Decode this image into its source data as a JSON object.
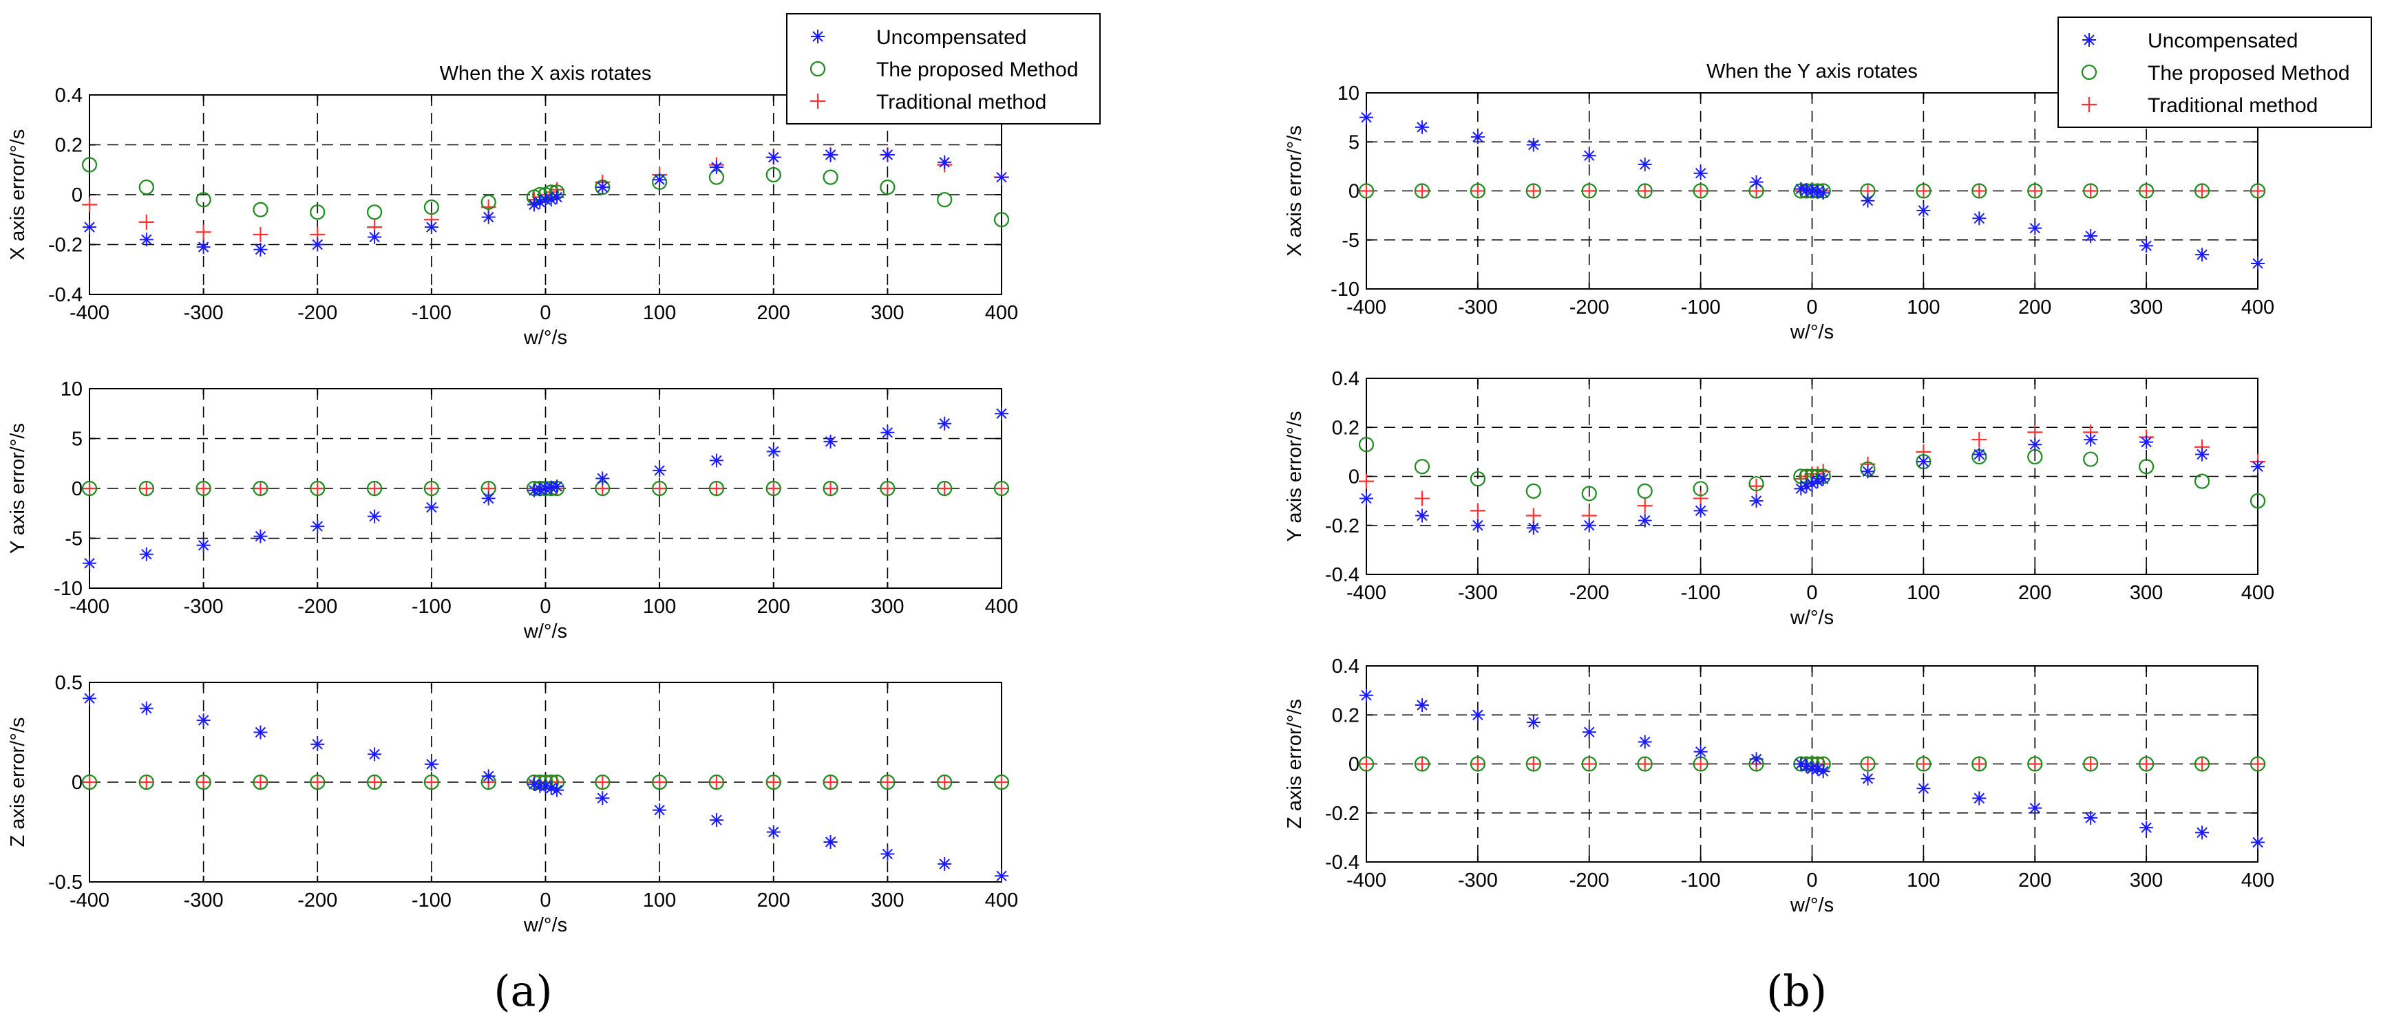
{
  "colors": {
    "uncompensated": "#1a1aff",
    "proposed": "#1a8c1a",
    "traditional": "#ff3030",
    "axis": "#000000",
    "grid": "#000000"
  },
  "legend_labels": [
    "Uncompensated",
    "The proposed Method",
    "Traditional method"
  ],
  "captions": {
    "left": "(a)",
    "right": "(b)"
  },
  "chart_data": [
    {
      "id": "a1",
      "type": "scatter",
      "title": "When the X axis rotates",
      "xlabel": "w/°/s",
      "ylabel": "X axis error/°/s",
      "xlim": [
        -400,
        400
      ],
      "ylim": [
        -0.4,
        0.4
      ],
      "xticks": [
        -400,
        -300,
        -200,
        -100,
        0,
        100,
        200,
        300,
        400
      ],
      "yticks": [
        -0.4,
        -0.2,
        0,
        0.2,
        0.4
      ],
      "ytick_labels": [
        "-0.4",
        "-0.2",
        "0",
        "0.2",
        "0.4"
      ],
      "grid": true,
      "legend": "top-right",
      "x": [
        -400,
        -350,
        -300,
        -250,
        -200,
        -150,
        -100,
        -50,
        -10,
        -5,
        0,
        5,
        10,
        50,
        100,
        150,
        200,
        250,
        300,
        350,
        400
      ],
      "series": [
        {
          "name": "Uncompensated",
          "marker": "star",
          "values": [
            -0.13,
            -0.18,
            -0.21,
            -0.22,
            -0.2,
            -0.17,
            -0.13,
            -0.09,
            -0.04,
            -0.03,
            -0.02,
            -0.02,
            -0.01,
            0.03,
            0.06,
            0.11,
            0.15,
            0.16,
            0.16,
            0.13,
            0.07
          ]
        },
        {
          "name": "The proposed Method",
          "marker": "circle",
          "values": [
            0.12,
            0.03,
            -0.02,
            -0.06,
            -0.07,
            -0.07,
            -0.05,
            -0.03,
            -0.01,
            0.0,
            0.0,
            0.01,
            0.01,
            0.03,
            0.05,
            0.07,
            0.08,
            0.07,
            0.03,
            -0.02,
            -0.1
          ]
        },
        {
          "name": "Traditional method",
          "marker": "plus",
          "values": [
            -0.04,
            -0.11,
            -0.15,
            -0.16,
            -0.16,
            -0.13,
            -0.1,
            -0.05,
            -0.02,
            -0.01,
            0.0,
            0.01,
            0.02,
            0.05,
            0.08,
            0.12,
            0.15,
            0.16,
            0.16,
            0.12,
            0.07
          ]
        }
      ]
    },
    {
      "id": "a2",
      "type": "scatter",
      "title": "",
      "xlabel": "w/°/s",
      "ylabel": "Y axis error/°/s",
      "xlim": [
        -400,
        400
      ],
      "ylim": [
        -10,
        10
      ],
      "xticks": [
        -400,
        -300,
        -200,
        -100,
        0,
        100,
        200,
        300,
        400
      ],
      "yticks": [
        -10,
        -5,
        0,
        5,
        10
      ],
      "ytick_labels": [
        "-10",
        "-5",
        "0",
        "5",
        "10"
      ],
      "grid": true,
      "legend": "",
      "x": [
        -400,
        -350,
        -300,
        -250,
        -200,
        -150,
        -100,
        -50,
        -10,
        -5,
        0,
        5,
        10,
        50,
        100,
        150,
        200,
        250,
        300,
        350,
        400
      ],
      "series": [
        {
          "name": "Uncompensated",
          "marker": "star",
          "values": [
            -7.5,
            -6.6,
            -5.7,
            -4.8,
            -3.8,
            -2.8,
            -1.9,
            -1.0,
            -0.2,
            -0.1,
            0.0,
            0.1,
            0.2,
            1.0,
            1.8,
            2.8,
            3.7,
            4.7,
            5.6,
            6.5,
            7.5
          ]
        },
        {
          "name": "The proposed Method",
          "marker": "circle",
          "values": [
            0,
            0,
            0,
            0,
            0,
            0,
            0,
            0,
            0,
            0,
            0,
            0,
            0,
            0,
            0,
            0,
            0,
            0,
            0,
            0,
            0
          ]
        },
        {
          "name": "Traditional method",
          "marker": "plus",
          "values": [
            0,
            0,
            0,
            0,
            0,
            0,
            0,
            0,
            0,
            0,
            0,
            0,
            0,
            0,
            0,
            0,
            0,
            0,
            0,
            0,
            0
          ]
        }
      ]
    },
    {
      "id": "a3",
      "type": "scatter",
      "title": "",
      "xlabel": "w/°/s",
      "ylabel": "Z axis error/°/s",
      "xlim": [
        -400,
        400
      ],
      "ylim": [
        -0.5,
        0.5
      ],
      "xticks": [
        -400,
        -300,
        -200,
        -100,
        0,
        100,
        200,
        300,
        400
      ],
      "yticks": [
        -0.5,
        0,
        0.5
      ],
      "ytick_labels": [
        "-0.5",
        "0",
        "0.5"
      ],
      "grid": true,
      "legend": "",
      "x": [
        -400,
        -350,
        -300,
        -250,
        -200,
        -150,
        -100,
        -50,
        -10,
        -5,
        0,
        5,
        10,
        50,
        100,
        150,
        200,
        250,
        300,
        350,
        400
      ],
      "series": [
        {
          "name": "Uncompensated",
          "marker": "star",
          "values": [
            0.42,
            0.37,
            0.31,
            0.25,
            0.19,
            0.14,
            0.09,
            0.03,
            -0.01,
            -0.02,
            -0.02,
            -0.03,
            -0.04,
            -0.08,
            -0.14,
            -0.19,
            -0.25,
            -0.3,
            -0.36,
            -0.41,
            -0.47
          ]
        },
        {
          "name": "The proposed Method",
          "marker": "circle",
          "values": [
            0,
            0,
            0,
            0,
            0,
            0,
            0,
            0,
            0,
            0,
            0,
            0,
            0,
            0,
            0,
            0,
            0,
            0,
            0,
            0,
            0
          ]
        },
        {
          "name": "Traditional method",
          "marker": "plus",
          "values": [
            0,
            0,
            0,
            0,
            0,
            0,
            0,
            0,
            0,
            0,
            0,
            0,
            0,
            0,
            0,
            0,
            0,
            0,
            0,
            0,
            0
          ]
        }
      ]
    },
    {
      "id": "b1",
      "type": "scatter",
      "title": "When the Y axis rotates",
      "xlabel": "w/°/s",
      "ylabel": "X axis error/°/s",
      "xlim": [
        -400,
        400
      ],
      "ylim": [
        -10,
        10
      ],
      "xticks": [
        -400,
        -300,
        -200,
        -100,
        0,
        100,
        200,
        300,
        400
      ],
      "yticks": [
        -10,
        -5,
        0,
        5,
        10
      ],
      "ytick_labels": [
        "-10",
        "-5",
        "0",
        "5",
        "10"
      ],
      "grid": true,
      "legend": "top-right",
      "x": [
        -400,
        -350,
        -300,
        -250,
        -200,
        -150,
        -100,
        -50,
        -10,
        -5,
        0,
        5,
        10,
        50,
        100,
        150,
        200,
        250,
        300,
        350,
        400
      ],
      "series": [
        {
          "name": "Uncompensated",
          "marker": "star",
          "values": [
            7.5,
            6.5,
            5.5,
            4.7,
            3.6,
            2.7,
            1.8,
            0.9,
            0.2,
            0.1,
            0.0,
            -0.1,
            -0.2,
            -1.0,
            -2.0,
            -2.8,
            -3.8,
            -4.6,
            -5.6,
            -6.5,
            -7.4
          ]
        },
        {
          "name": "The proposed Method",
          "marker": "circle",
          "values": [
            0,
            0,
            0,
            0,
            0,
            0,
            0,
            0,
            0,
            0,
            0,
            0,
            0,
            0,
            0,
            0,
            0,
            0,
            0,
            0,
            0
          ]
        },
        {
          "name": "Traditional method",
          "marker": "plus",
          "values": [
            0,
            0,
            0,
            0,
            0,
            0,
            0,
            0,
            0,
            0,
            0,
            0,
            0,
            0,
            0,
            0,
            0,
            0,
            0,
            0,
            0
          ]
        }
      ]
    },
    {
      "id": "b2",
      "type": "scatter",
      "title": "",
      "xlabel": "w/°/s",
      "ylabel": "Y axis error/°/s",
      "xlim": [
        -400,
        400
      ],
      "ylim": [
        -0.4,
        0.4
      ],
      "xticks": [
        -400,
        -300,
        -200,
        -100,
        0,
        100,
        200,
        300,
        400
      ],
      "yticks": [
        -0.4,
        -0.2,
        0,
        0.2,
        0.4
      ],
      "ytick_labels": [
        "-0.4",
        "-0.2",
        "0",
        "0.2",
        "0.4"
      ],
      "grid": true,
      "legend": "",
      "x": [
        -400,
        -350,
        -300,
        -250,
        -200,
        -150,
        -100,
        -50,
        -10,
        -5,
        0,
        5,
        10,
        50,
        100,
        150,
        200,
        250,
        300,
        350,
        400
      ],
      "series": [
        {
          "name": "Uncompensated",
          "marker": "star",
          "values": [
            -0.09,
            -0.16,
            -0.2,
            -0.21,
            -0.2,
            -0.18,
            -0.14,
            -0.1,
            -0.05,
            -0.04,
            -0.03,
            -0.02,
            -0.01,
            0.02,
            0.06,
            0.09,
            0.13,
            0.15,
            0.14,
            0.09,
            0.04
          ]
        },
        {
          "name": "The proposed Method",
          "marker": "circle",
          "values": [
            0.13,
            0.04,
            -0.01,
            -0.06,
            -0.07,
            -0.06,
            -0.05,
            -0.03,
            0.0,
            0.0,
            0.0,
            0.0,
            0.0,
            0.03,
            0.06,
            0.08,
            0.08,
            0.07,
            0.04,
            -0.02,
            -0.1
          ]
        },
        {
          "name": "Traditional method",
          "marker": "plus",
          "values": [
            -0.02,
            -0.09,
            -0.14,
            -0.16,
            -0.16,
            -0.12,
            -0.09,
            -0.04,
            -0.01,
            0.0,
            0.01,
            0.01,
            0.02,
            0.05,
            0.1,
            0.15,
            0.18,
            0.18,
            0.16,
            0.12,
            0.06
          ]
        }
      ]
    },
    {
      "id": "b3",
      "type": "scatter",
      "title": "",
      "xlabel": "w/°/s",
      "ylabel": "Z axis error/°/s",
      "xlim": [
        -400,
        400
      ],
      "ylim": [
        -0.4,
        0.4
      ],
      "xticks": [
        -400,
        -300,
        -200,
        -100,
        0,
        100,
        200,
        300,
        400
      ],
      "yticks": [
        -0.4,
        -0.2,
        0,
        0.2,
        0.4
      ],
      "ytick_labels": [
        "-0.4",
        "-0.2",
        "0",
        "0.2",
        "0.4"
      ],
      "grid": true,
      "legend": "",
      "x": [
        -400,
        -350,
        -300,
        -250,
        -200,
        -150,
        -100,
        -50,
        -10,
        -5,
        0,
        5,
        10,
        50,
        100,
        150,
        200,
        250,
        300,
        350,
        400
      ],
      "series": [
        {
          "name": "Uncompensated",
          "marker": "star",
          "values": [
            0.28,
            0.24,
            0.2,
            0.17,
            0.13,
            0.09,
            0.05,
            0.02,
            0.0,
            -0.01,
            -0.02,
            -0.02,
            -0.03,
            -0.06,
            -0.1,
            -0.14,
            -0.18,
            -0.22,
            -0.26,
            -0.28,
            -0.32
          ]
        },
        {
          "name": "The proposed Method",
          "marker": "circle",
          "values": [
            0,
            0,
            0,
            0,
            0,
            0,
            0,
            0,
            0,
            0,
            0,
            0,
            0,
            0,
            0,
            0,
            0,
            0,
            0,
            0,
            0
          ]
        },
        {
          "name": "Traditional method",
          "marker": "plus",
          "values": [
            0,
            0,
            0,
            0,
            0,
            0,
            0,
            0,
            0,
            0,
            0,
            0,
            0,
            0,
            0,
            0,
            0,
            0,
            0,
            0,
            0
          ]
        }
      ]
    }
  ]
}
